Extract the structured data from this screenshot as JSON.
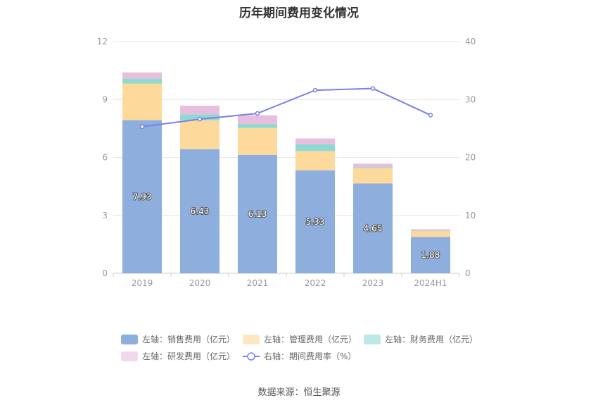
{
  "title": "历年期间费用变化情况",
  "source": "数据来源：恒生聚源",
  "chart_data": {
    "type": "bar",
    "stacked": true,
    "categories": [
      "2019",
      "2020",
      "2021",
      "2022",
      "2023",
      "2024H1"
    ],
    "left_axis": {
      "ylim": [
        0,
        12
      ],
      "ticks": [
        0,
        3,
        6,
        9,
        12
      ]
    },
    "right_axis": {
      "ylim": [
        0,
        40
      ],
      "ticks": [
        0,
        10,
        20,
        30,
        40
      ]
    },
    "series": [
      {
        "name": "左轴：销售费用（亿元）",
        "axis": "left",
        "type": "bar",
        "color": "#8eaedd",
        "values": [
          7.93,
          6.43,
          6.13,
          5.33,
          4.65,
          1.88
        ],
        "labels": [
          "7.93",
          "6.43",
          "6.13",
          "5.33",
          "4.65",
          "1.88"
        ]
      },
      {
        "name": "左轴：管理费用（亿元）",
        "axis": "left",
        "type": "bar",
        "color": "#fdd99b",
        "values": [
          1.9,
          1.5,
          1.4,
          1.0,
          0.8,
          0.3
        ]
      },
      {
        "name": "左轴：财务费用（亿元）",
        "axis": "left",
        "type": "bar",
        "color": "#8fd9d3",
        "values": [
          0.25,
          0.3,
          0.2,
          0.35,
          0.05,
          0.02
        ]
      },
      {
        "name": "左轴：研发费用（亿元）",
        "axis": "left",
        "type": "bar",
        "color": "#e8bedf",
        "values": [
          0.32,
          0.45,
          0.45,
          0.3,
          0.18,
          0.08
        ]
      },
      {
        "name": "右轴：期间费用率（%）",
        "axis": "right",
        "type": "line",
        "color": "#7b7fe8",
        "values": [
          25.3,
          26.6,
          27.6,
          31.6,
          31.9,
          27.3
        ]
      }
    ]
  }
}
